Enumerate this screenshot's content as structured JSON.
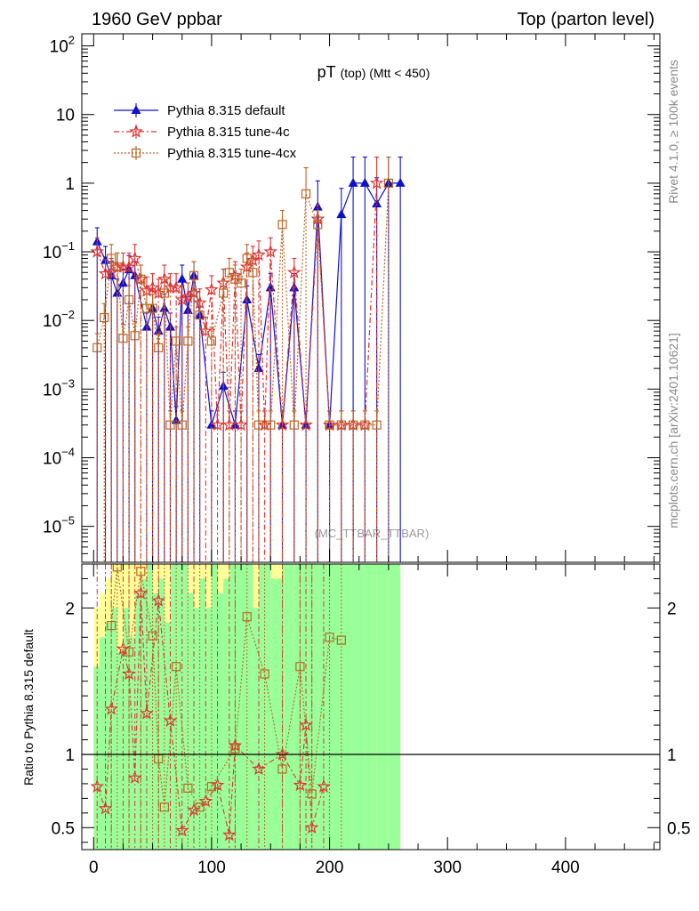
{
  "header": {
    "left": "1960 GeV ppbar",
    "right": "Top (parton level)"
  },
  "side": {
    "rivet": "Rivet 4.1.0, ≥ 100k events",
    "mcplots": "mcplots.cern.ch [arXiv:2401.10621]"
  },
  "colors": {
    "default": "#1010cc",
    "tune4c": "#dd3333",
    "tune4cx": "#bb6622",
    "band_green": "#99ff99",
    "band_yellow": "#ffff99"
  },
  "chart_data": [
    {
      "type": "line",
      "title": "pT",
      "title_sub": "(top) (Mtt < 450)",
      "watermark": "(MC_TTBAR_TTBAR)",
      "yscale": "log",
      "xlim": [
        -10,
        480
      ],
      "ylim": [
        3e-06,
        150
      ],
      "x_ticks": [
        0,
        100,
        200,
        300,
        400
      ],
      "y_tick_labels": [
        {
          "value": 100,
          "base": "10",
          "exp": "2"
        },
        {
          "value": 10,
          "base": "10",
          "exp": ""
        },
        {
          "value": 1,
          "base": "1",
          "exp": ""
        },
        {
          "value": 0.1,
          "base": "10",
          "exp": "−1"
        },
        {
          "value": 0.01,
          "base": "10",
          "exp": "−2"
        },
        {
          "value": 0.001,
          "base": "10",
          "exp": "−3"
        },
        {
          "value": 0.0001,
          "base": "10",
          "exp": "−4"
        },
        {
          "value": 1e-05,
          "base": "10",
          "exp": "−5"
        }
      ],
      "legend_position": "top-left",
      "series": [
        {
          "name": "Pythia 8.315 default",
          "marker": "triangle",
          "x": [
            3,
            10,
            15,
            20,
            25,
            30,
            35,
            45,
            50,
            55,
            60,
            65,
            70,
            75,
            80,
            85,
            90,
            100,
            110,
            120,
            130,
            140,
            150,
            160,
            170,
            180,
            190,
            200,
            210,
            220,
            230,
            240,
            250,
            260
          ],
          "y": [
            0.14,
            0.075,
            0.045,
            0.025,
            0.035,
            0.055,
            0.045,
            0.008,
            0.015,
            0.007,
            0.015,
            0.008,
            0.00035,
            0.04,
            0.014,
            0.045,
            0.012,
            0.0003,
            0.0011,
            0.0003,
            0.02,
            0.002,
            0.03,
            0.0003,
            0.03,
            0.0003,
            0.45,
            0.0003,
            0.35,
            1.0,
            1.0,
            0.5,
            1.0,
            1.0
          ]
        },
        {
          "name": "Pythia 8.315 tune-4c",
          "marker": "star",
          "x": [
            3,
            10,
            15,
            20,
            25,
            30,
            35,
            40,
            45,
            50,
            55,
            60,
            65,
            70,
            75,
            80,
            85,
            90,
            95,
            100,
            105,
            110,
            115,
            120,
            125,
            130,
            135,
            140,
            145,
            150,
            160,
            170,
            180,
            190,
            200,
            210,
            220,
            230,
            240
          ],
          "y": [
            0.1,
            0.048,
            0.05,
            0.06,
            0.06,
            0.06,
            0.08,
            0.04,
            0.027,
            0.03,
            0.025,
            0.04,
            0.03,
            0.03,
            0.02,
            0.022,
            0.025,
            0.018,
            0.007,
            0.028,
            0.0003,
            0.035,
            0.0003,
            0.045,
            0.0003,
            0.06,
            0.075,
            0.09,
            0.0003,
            0.1,
            0.0003,
            0.05,
            0.0003,
            0.3,
            0.0003,
            0.0003,
            0.0003,
            0.0003,
            1.0
          ]
        },
        {
          "name": "Pythia 8.315 tune-4cx",
          "marker": "square",
          "x": [
            3,
            9,
            15,
            20,
            25,
            30,
            35,
            40,
            45,
            50,
            55,
            60,
            65,
            70,
            75,
            80,
            85,
            90,
            100,
            110,
            115,
            120,
            125,
            130,
            135,
            140,
            150,
            160,
            170,
            180,
            190,
            200,
            210,
            220,
            230,
            240,
            250
          ],
          "y": [
            0.004,
            0.011,
            0.08,
            0.06,
            0.0055,
            0.02,
            0.006,
            0.04,
            0.015,
            0.015,
            0.004,
            0.025,
            0.0003,
            0.005,
            0.0003,
            0.005,
            0.045,
            0.012,
            0.005,
            0.025,
            0.05,
            0.04,
            0.035,
            0.08,
            0.05,
            0.0003,
            0.0003,
            0.25,
            0.0003,
            0.7,
            0.25,
            0.0003,
            0.0003,
            0.0003,
            0.0003,
            0.0003,
            1.0
          ]
        }
      ]
    },
    {
      "type": "line",
      "ylabel": "Ratio to Pythia 8.315 default",
      "xlim": [
        -10,
        480
      ],
      "ylim": [
        0.35,
        2.3
      ],
      "y_ticks": [
        {
          "value": 0.5,
          "label": "0.5"
        },
        {
          "value": 1,
          "label": "1"
        },
        {
          "value": 2,
          "label": "2"
        }
      ],
      "x_tick_labels": [
        "0",
        "100",
        "200",
        "300",
        "400"
      ],
      "x_ticks": [
        0,
        100,
        200,
        300,
        400
      ],
      "reference_line": 1,
      "band": {
        "x_edges": [
          0,
          5,
          10,
          15,
          20,
          25,
          30,
          35,
          40,
          45,
          50,
          55,
          60,
          65,
          70,
          75,
          80,
          85,
          90,
          95,
          100,
          105,
          110,
          115,
          120,
          125,
          130,
          135,
          140,
          145,
          150,
          160,
          170,
          180,
          190,
          200,
          210,
          220,
          230,
          240,
          250,
          260
        ],
        "green_low": [
          0.35,
          0.35,
          0.35,
          0.35,
          0.35,
          0.35,
          0.35,
          0.35,
          0.35,
          0.35,
          0.35,
          0.35,
          0.35,
          0.35,
          0.35,
          0.35,
          0.35,
          0.35,
          0.35,
          0.35,
          0.35,
          0.35,
          0.35,
          0.35,
          0.35,
          0.35,
          0.35,
          0.35,
          0.35,
          0.35,
          0.35,
          0.35,
          0.35,
          0.35,
          0.35,
          0.35,
          0.35,
          0.35,
          0.35,
          0.35,
          0.35
        ],
        "green_high": [
          1.6,
          1.8,
          1.9,
          2.0,
          1.7,
          2.0,
          1.8,
          2.1,
          2.2,
          2.3,
          2.1,
          2.2,
          1.9,
          2.3,
          2.3,
          2.3,
          2.1,
          2.0,
          2.2,
          2.0,
          2.3,
          2.1,
          2.2,
          2.3,
          2.3,
          2.3,
          2.3,
          2.0,
          2.3,
          2.3,
          2.2,
          2.3,
          2.3,
          2.3,
          2.3,
          2.3,
          2.3,
          2.3,
          2.3,
          2.3,
          2.3
        ],
        "yellow_high": [
          2.0,
          2.1,
          2.2,
          2.3,
          2.3,
          2.3,
          2.3,
          2.3,
          2.3,
          2.3,
          2.3,
          2.3,
          2.3,
          2.3,
          2.3,
          2.3,
          2.3,
          2.3,
          2.3,
          2.3,
          2.3,
          2.3,
          2.3,
          2.3,
          2.3,
          2.3,
          2.3,
          2.3,
          2.3,
          2.3,
          2.3,
          2.3,
          2.3,
          2.3,
          2.3,
          2.3,
          2.3,
          2.3,
          2.3,
          2.3,
          2.3
        ]
      },
      "series": [
        {
          "name": "Pythia 8.315 tune-4c",
          "marker": "star",
          "x": [
            3,
            10,
            15,
            25,
            30,
            35,
            40,
            45,
            55,
            65,
            75,
            85,
            95,
            105,
            115,
            120,
            140,
            160,
            175,
            180,
            185,
            195
          ],
          "y": [
            0.78,
            0.63,
            1.31,
            1.72,
            1.55,
            0.84,
            2.1,
            1.28,
            2.05,
            1.23,
            0.48,
            0.62,
            0.68,
            0.79,
            0.45,
            1.06,
            0.9,
            1.0,
            0.79,
            1.2,
            0.5,
            0.78
          ]
        },
        {
          "name": "Pythia 8.315 tune-4cx",
          "marker": "square",
          "x": [
            15,
            20,
            30,
            40,
            50,
            55,
            60,
            70,
            80,
            90,
            100,
            120,
            130,
            145,
            160,
            175,
            185,
            200,
            210
          ],
          "y": [
            1.88,
            2.28,
            1.7,
            2.25,
            1.81,
            0.97,
            0.64,
            1.6,
            0.77,
            0.64,
            0.78,
            1.04,
            1.94,
            1.55,
            0.9,
            1.6,
            0.73,
            1.8,
            1.78
          ]
        }
      ]
    }
  ]
}
